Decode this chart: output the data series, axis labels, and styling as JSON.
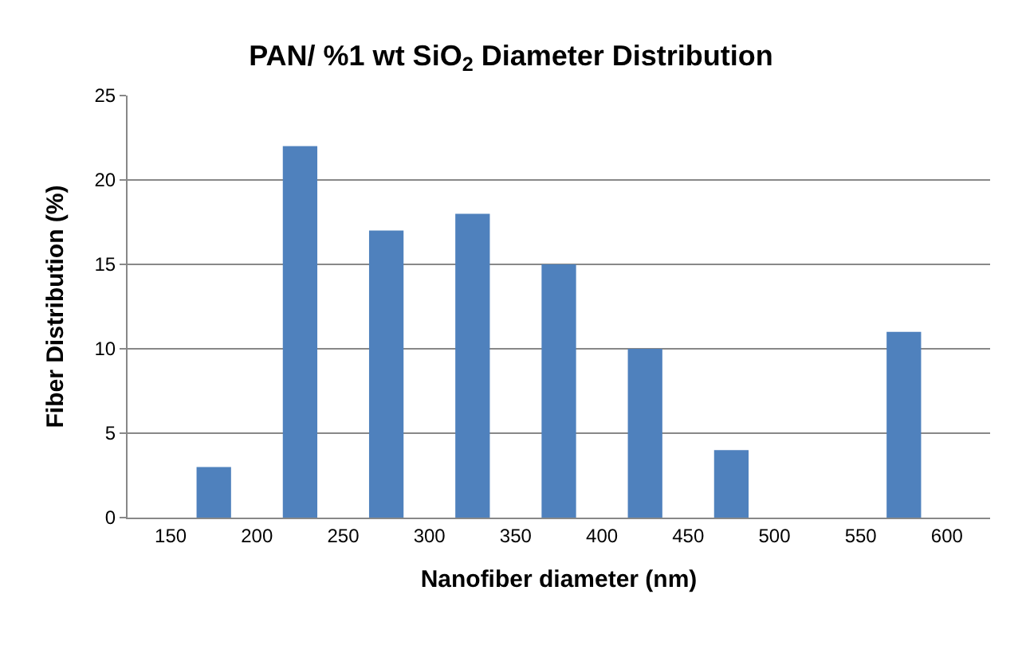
{
  "chart_data": {
    "type": "bar",
    "title": "PAN/ %1 wt SiO$_{2}$ Diameter Distribution",
    "xlabel": "Nanofiber diameter (nm)",
    "ylabel": "Fiber Distribution (%)",
    "x": [
      175,
      225,
      275,
      325,
      375,
      425,
      475,
      525,
      575
    ],
    "values": [
      3,
      22,
      17,
      18,
      15,
      10,
      4,
      0,
      11
    ],
    "color": "#4f81bd",
    "xlim": [
      125,
      625
    ],
    "xticks": [
      150,
      200,
      250,
      300,
      350,
      400,
      450,
      500,
      550,
      600
    ],
    "ylim": [
      0,
      25
    ],
    "yticks": [
      0,
      5,
      10,
      15,
      20,
      25
    ],
    "grid": "y"
  }
}
